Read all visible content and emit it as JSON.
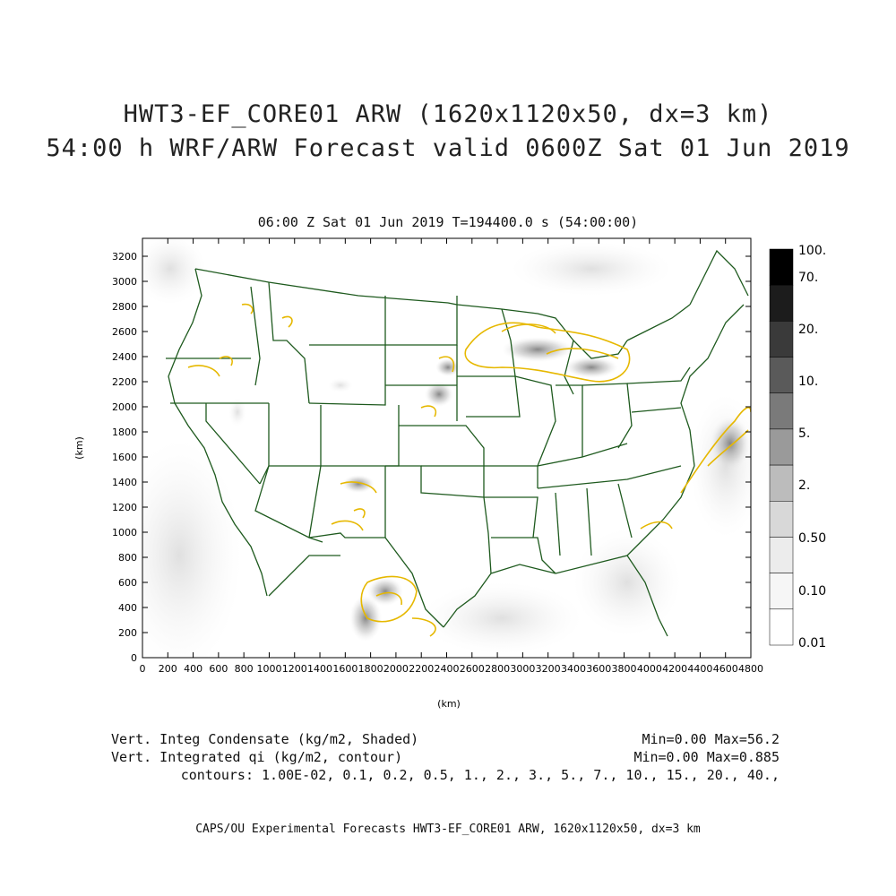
{
  "header": {
    "title_line1": "HWT3-EF_CORE01 ARW (1620x1120x50, dx=3 km)",
    "title_line2": "54:00 h WRF/ARW Forecast valid 0600Z Sat 01 Jun 2019",
    "subtitle": "06:00 Z Sat 01 Jun 2019    T=194400.0 s (54:00:00)"
  },
  "axes": {
    "x_title": "(km)",
    "y_title": "(km)",
    "x_ticks": [
      "0",
      "200",
      "400",
      "600",
      "800",
      "1000",
      "1200",
      "1400",
      "1600",
      "1800",
      "2000",
      "2200",
      "2400",
      "2600",
      "2800",
      "3000",
      "3200",
      "3400",
      "3600",
      "3800",
      "4000",
      "4200",
      "4400",
      "4600",
      "4800"
    ],
    "y_ticks": [
      "0",
      "200",
      "400",
      "600",
      "800",
      "1000",
      "1200",
      "1400",
      "1600",
      "1800",
      "2000",
      "2200",
      "2400",
      "2600",
      "2800",
      "3000",
      "3200"
    ]
  },
  "colorbar": {
    "labels": [
      "100.",
      "70.",
      "20.",
      "10.",
      "5.",
      "2.",
      "0.50",
      "0.10",
      "0.01"
    ],
    "colors": [
      "#000000",
      "#1c1c1c",
      "#3a3a3a",
      "#5a5a5a",
      "#7a7a7a",
      "#9a9a9a",
      "#bcbcbc",
      "#d8d8d8",
      "#ececec",
      "#f6f6f6",
      "#ffffff"
    ]
  },
  "colors": {
    "border": "#1e5a1e",
    "contour": "#e6b800",
    "frame": "#000000"
  },
  "info": {
    "line1_left": "Vert. Integ Condensate (kg/m2, Shaded)",
    "line1_right": "Min=0.00 Max=56.2",
    "line2_left": "Vert. Integrated qi (kg/m2, contour)",
    "line2_right": "Min=0.00 Max=0.885",
    "line3": "contours: 1.00E-02, 0.1, 0.2, 0.5, 1., 2., 3., 5., 7., 10., 15., 20., 40.,"
  },
  "footer": "CAPS/OU Experimental Forecasts  HWT3-EF_CORE01 ARW, 1620x1120x50, dx=3 km"
}
